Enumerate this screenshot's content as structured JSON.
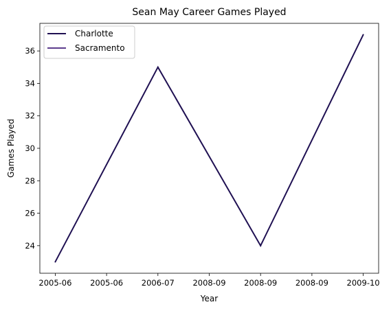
{
  "chart_data": {
    "type": "line",
    "title": "Sean May Career Games Played",
    "xlabel": "Year",
    "ylabel": "Games Played",
    "x": [
      0,
      1,
      2,
      3,
      4,
      5,
      6
    ],
    "x_tick_labels": [
      "2005-06",
      "2005-06",
      "2006-07",
      "2008-09",
      "2008-09",
      "2008-09",
      "2009-10"
    ],
    "xlim": [
      -0.3,
      6.3
    ],
    "ylim": [
      22.3,
      37.7
    ],
    "y_ticks": [
      24,
      26,
      28,
      30,
      32,
      34,
      36
    ],
    "grid": false,
    "legend_position": "upper-left",
    "series": [
      {
        "name": "Charlotte",
        "color": "#1f1052",
        "x": [
          0,
          2,
          4,
          6
        ],
        "y": [
          23,
          35,
          24,
          37
        ]
      },
      {
        "name": "Sacramento",
        "color": "#5b3b8c",
        "x": [],
        "y": []
      }
    ]
  }
}
